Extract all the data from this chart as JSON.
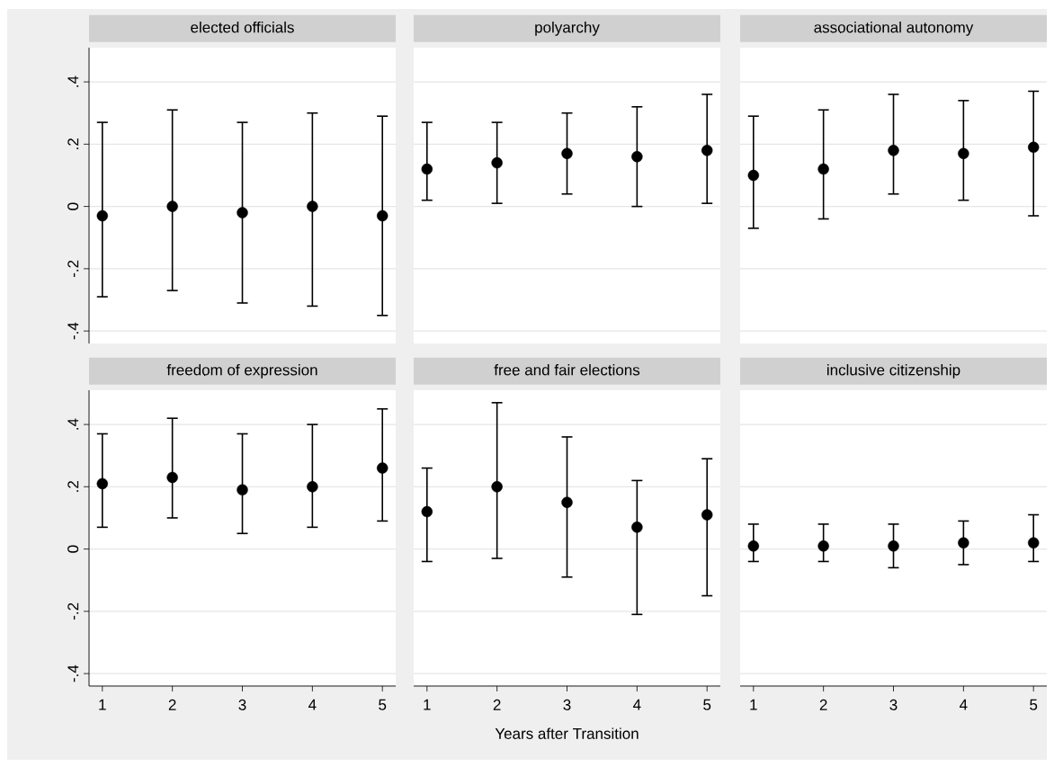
{
  "chart_data": [
    {
      "type": "scatter",
      "title": "elected officials",
      "x": [
        1,
        2,
        3,
        4,
        5
      ],
      "values": [
        -0.03,
        0.0,
        -0.02,
        0.0,
        -0.03
      ],
      "errors": [
        [
          -0.29,
          0.27
        ],
        [
          -0.27,
          0.31
        ],
        [
          -0.31,
          0.27
        ],
        [
          -0.32,
          0.3
        ],
        [
          -0.35,
          0.29
        ]
      ],
      "color": "#000000",
      "marker": "circle",
      "xlim": [
        0.81,
        5.19
      ],
      "ylim": [
        -0.44,
        0.51
      ],
      "xticks": [
        1,
        2,
        3,
        4,
        5
      ],
      "yticks": [
        {
          "value": -0.4,
          "label": "-.4"
        },
        {
          "value": -0.2,
          "label": "-.2"
        },
        0,
        {
          "value": 0.2,
          "label": ".2"
        },
        {
          "value": 0.4,
          "label": ".4"
        }
      ],
      "grid": "y",
      "tick_labels": "y"
    },
    {
      "type": "scatter",
      "title": "polyarchy",
      "x": [
        1,
        2,
        3,
        4,
        5
      ],
      "values": [
        0.12,
        0.14,
        0.17,
        0.16,
        0.18
      ],
      "errors": [
        [
          0.02,
          0.27
        ],
        [
          0.01,
          0.27
        ],
        [
          0.04,
          0.3
        ],
        [
          0.0,
          0.32
        ],
        [
          0.01,
          0.36
        ]
      ],
      "color": "#000000",
      "marker": "circle",
      "xlim": [
        0.81,
        5.19
      ],
      "ylim": [
        -0.44,
        0.51
      ],
      "xticks": [
        1,
        2,
        3,
        4,
        5
      ],
      "yticks": [
        {
          "value": -0.4,
          "label": null
        },
        {
          "value": -0.2,
          "label": null
        },
        0,
        {
          "value": 0.2,
          "label": null
        },
        {
          "value": 0.4,
          "label": null
        }
      ],
      "grid": "y",
      "tick_labels": false
    },
    {
      "type": "scatter",
      "title": "associational autonomy",
      "x": [
        1,
        2,
        3,
        4,
        5
      ],
      "values": [
        0.1,
        0.12,
        0.18,
        0.17,
        0.19
      ],
      "errors": [
        [
          -0.07,
          0.29
        ],
        [
          -0.04,
          0.31
        ],
        [
          0.04,
          0.36
        ],
        [
          0.02,
          0.34
        ],
        [
          -0.03,
          0.37
        ]
      ],
      "color": "#000000",
      "marker": "circle",
      "xlim": [
        0.81,
        5.19
      ],
      "ylim": [
        -0.44,
        0.51
      ],
      "xticks": [
        1,
        2,
        3,
        4,
        5
      ],
      "yticks": [
        {
          "value": -0.4,
          "label": null
        },
        {
          "value": -0.2,
          "label": null
        },
        0,
        {
          "value": 0.2,
          "label": null
        },
        {
          "value": 0.4,
          "label": null
        }
      ],
      "grid": "y",
      "tick_labels": false
    },
    {
      "type": "scatter",
      "title": "freedom of expression",
      "x": [
        1,
        2,
        3,
        4,
        5
      ],
      "values": [
        0.21,
        0.23,
        0.19,
        0.2,
        0.26
      ],
      "errors": [
        [
          0.07,
          0.37
        ],
        [
          0.1,
          0.42
        ],
        [
          0.05,
          0.37
        ],
        [
          0.07,
          0.4
        ],
        [
          0.09,
          0.45
        ]
      ],
      "color": "#000000",
      "marker": "circle",
      "xlim": [
        0.81,
        5.19
      ],
      "ylim": [
        -0.44,
        0.51
      ],
      "xticks": [
        1,
        2,
        3,
        4,
        5
      ],
      "yticks": [
        {
          "value": -0.4,
          "label": "-.4"
        },
        {
          "value": -0.2,
          "label": "-.2"
        },
        0,
        {
          "value": 0.2,
          "label": ".2"
        },
        {
          "value": 0.4,
          "label": ".4"
        }
      ],
      "grid": "y"
    },
    {
      "type": "scatter",
      "title": "free and fair elections",
      "xlabel": "Years after Transition",
      "x": [
        1,
        2,
        3,
        4,
        5
      ],
      "values": [
        0.12,
        0.2,
        0.15,
        0.07,
        0.11
      ],
      "errors": [
        [
          -0.04,
          0.26
        ],
        [
          -0.03,
          0.47
        ],
        [
          -0.09,
          0.36
        ],
        [
          -0.21,
          0.22
        ],
        [
          -0.15,
          0.29
        ]
      ],
      "color": "#000000",
      "marker": "circle",
      "xlim": [
        0.81,
        5.19
      ],
      "ylim": [
        -0.44,
        0.51
      ],
      "xticks": [
        1,
        2,
        3,
        4,
        5
      ],
      "yticks": [
        {
          "value": -0.4,
          "label": null
        },
        {
          "value": -0.2,
          "label": null
        },
        0,
        {
          "value": 0.2,
          "label": null
        },
        {
          "value": 0.4,
          "label": null
        }
      ],
      "grid": "y",
      "tick_labels": "x"
    },
    {
      "type": "scatter",
      "title": "inclusive citizenship",
      "x": [
        1,
        2,
        3,
        4,
        5
      ],
      "values": [
        0.01,
        0.01,
        0.01,
        0.02,
        0.02
      ],
      "errors": [
        [
          -0.04,
          0.08
        ],
        [
          -0.04,
          0.08
        ],
        [
          -0.06,
          0.08
        ],
        [
          -0.05,
          0.09
        ],
        [
          -0.04,
          0.11
        ]
      ],
      "color": "#000000",
      "marker": "circle",
      "xlim": [
        0.81,
        5.19
      ],
      "ylim": [
        -0.44,
        0.51
      ],
      "xticks": [
        1,
        2,
        3,
        4,
        5
      ],
      "yticks": [
        {
          "value": -0.4,
          "label": null
        },
        {
          "value": -0.2,
          "label": null
        },
        0,
        {
          "value": 0.2,
          "label": null
        },
        {
          "value": 0.4,
          "label": null
        }
      ],
      "grid": "y",
      "tick_labels": "x"
    }
  ]
}
